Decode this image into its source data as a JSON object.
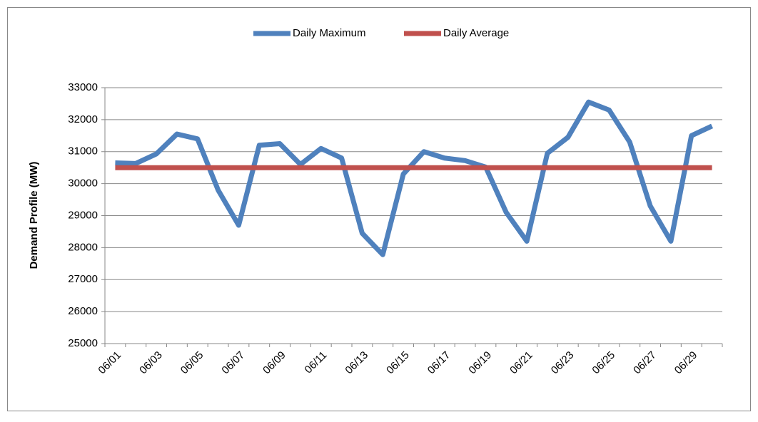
{
  "chart_data": {
    "type": "line",
    "y_label": "Demand Profile (MW)",
    "categories": [
      "06/01",
      null,
      "06/03",
      null,
      "06/05",
      null,
      "06/07",
      null,
      "06/09",
      null,
      "06/11",
      null,
      "06/13",
      null,
      "06/15",
      null,
      "06/17",
      null,
      "06/19",
      null,
      "06/21",
      null,
      "06/23",
      null,
      "06/25",
      null,
      "06/27",
      null,
      "06/29",
      null
    ],
    "series": [
      {
        "name": "Daily Maximum",
        "color": "#4f81bd",
        "values": [
          30650,
          30630,
          30930,
          31550,
          31400,
          29800,
          28700,
          31200,
          31250,
          30600,
          31100,
          30800,
          28450,
          27780,
          30300,
          31000,
          30800,
          30720,
          30520,
          29100,
          28200,
          30950,
          31450,
          32550,
          32300,
          31300,
          29300,
          28200,
          31500,
          31800
        ]
      },
      {
        "name": "Daily Average",
        "color": "#c0504d",
        "values": [
          30500,
          30500,
          30500,
          30500,
          30500,
          30500,
          30500,
          30500,
          30500,
          30500,
          30500,
          30500,
          30500,
          30500,
          30500,
          30500,
          30500,
          30500,
          30500,
          30500,
          30500,
          30500,
          30500,
          30500,
          30500,
          30500,
          30500,
          30500,
          30500,
          30500
        ]
      }
    ],
    "ylim": [
      25000,
      33000
    ],
    "yticks": [
      25000,
      26000,
      27000,
      28000,
      29000,
      30000,
      31000,
      32000,
      33000
    ],
    "grid": true,
    "legend": "top"
  }
}
